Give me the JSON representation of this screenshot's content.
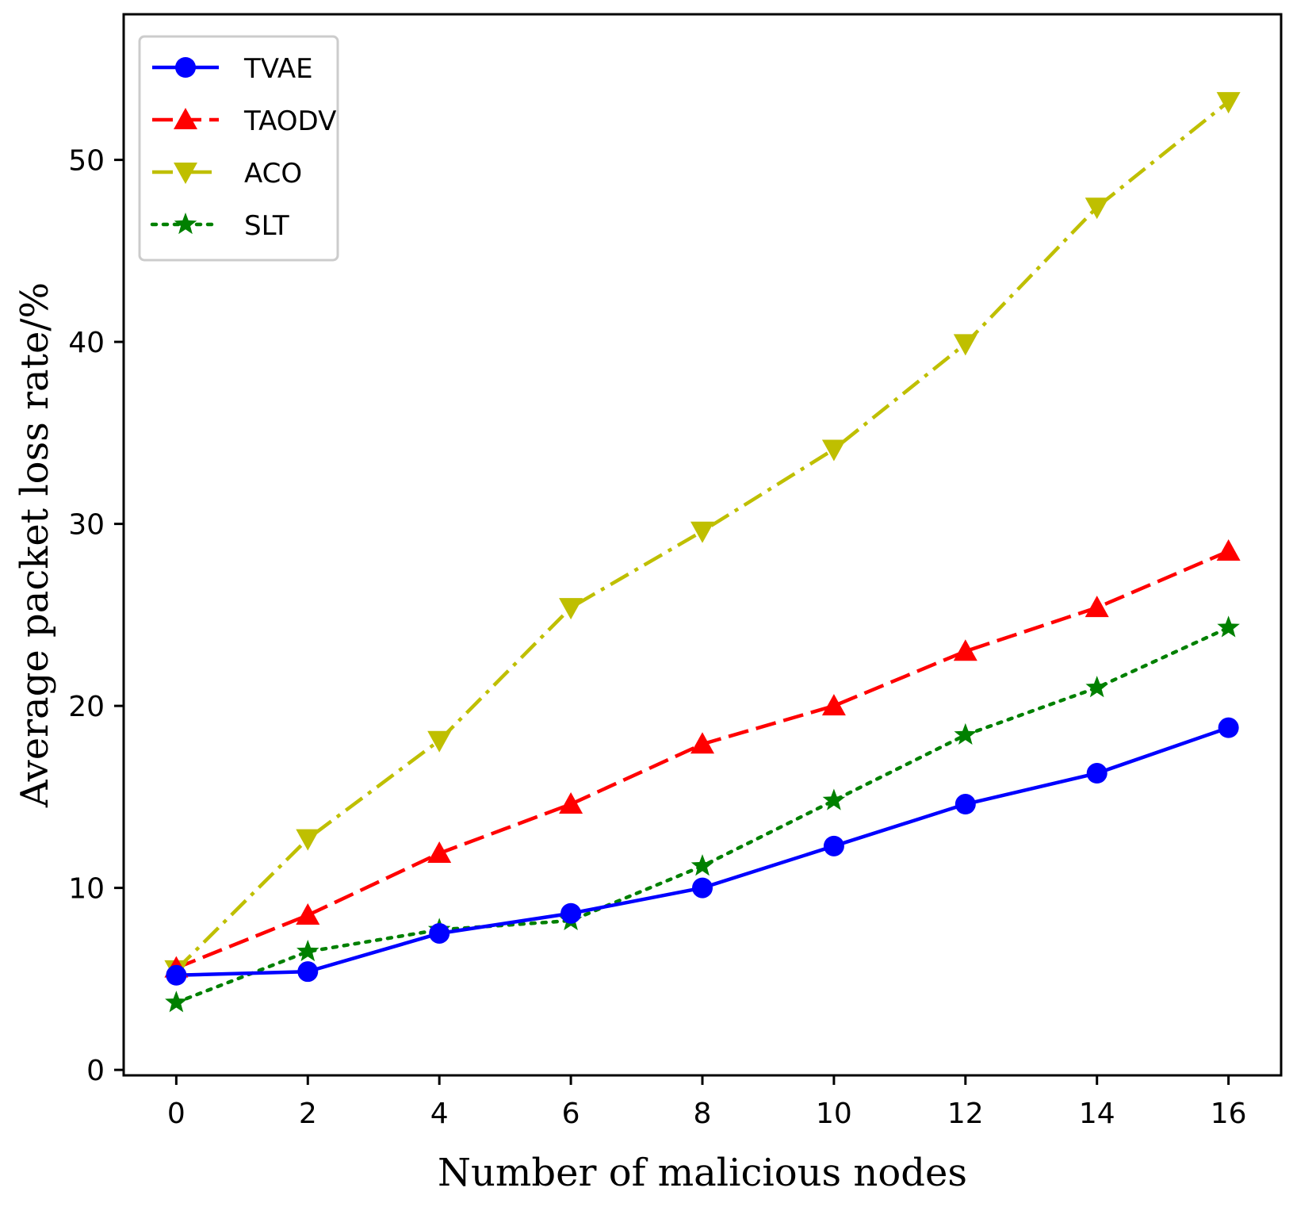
{
  "chart_data": {
    "type": "line",
    "title": "",
    "xlabel": "Number of malicious nodes",
    "ylabel": "Average packet loss rate/%",
    "x": [
      0,
      2,
      4,
      6,
      8,
      10,
      12,
      14,
      16
    ],
    "xlim": [
      -0.8,
      16.8
    ],
    "ylim": [
      -0.3,
      58
    ],
    "xticks": [
      0,
      2,
      4,
      6,
      8,
      10,
      12,
      14,
      16
    ],
    "yticks": [
      0,
      10,
      20,
      30,
      40,
      50
    ],
    "grid": false,
    "legend_position": "top-left",
    "series": [
      {
        "name": "TVAE",
        "color": "#0000ff",
        "marker": "circle",
        "linestyle": "solid",
        "values": [
          5.2,
          5.4,
          7.5,
          8.6,
          10.0,
          12.3,
          14.6,
          16.3,
          18.8
        ]
      },
      {
        "name": "TAODV",
        "color": "#ff0000",
        "marker": "triangle-up",
        "linestyle": "dashed",
        "values": [
          5.6,
          8.5,
          11.9,
          14.6,
          17.9,
          20.0,
          23.0,
          25.4,
          28.5
        ]
      },
      {
        "name": "ACO",
        "color": "#bfbf00",
        "marker": "triangle-down",
        "linestyle": "dashdot",
        "values": [
          5.5,
          12.7,
          18.1,
          25.4,
          29.6,
          34.1,
          39.9,
          47.4,
          53.2
        ]
      },
      {
        "name": "SLT",
        "color": "#008000",
        "marker": "star",
        "linestyle": "dotted",
        "values": [
          3.7,
          6.5,
          7.7,
          8.2,
          11.2,
          14.8,
          18.4,
          21.0,
          24.3
        ]
      }
    ]
  }
}
